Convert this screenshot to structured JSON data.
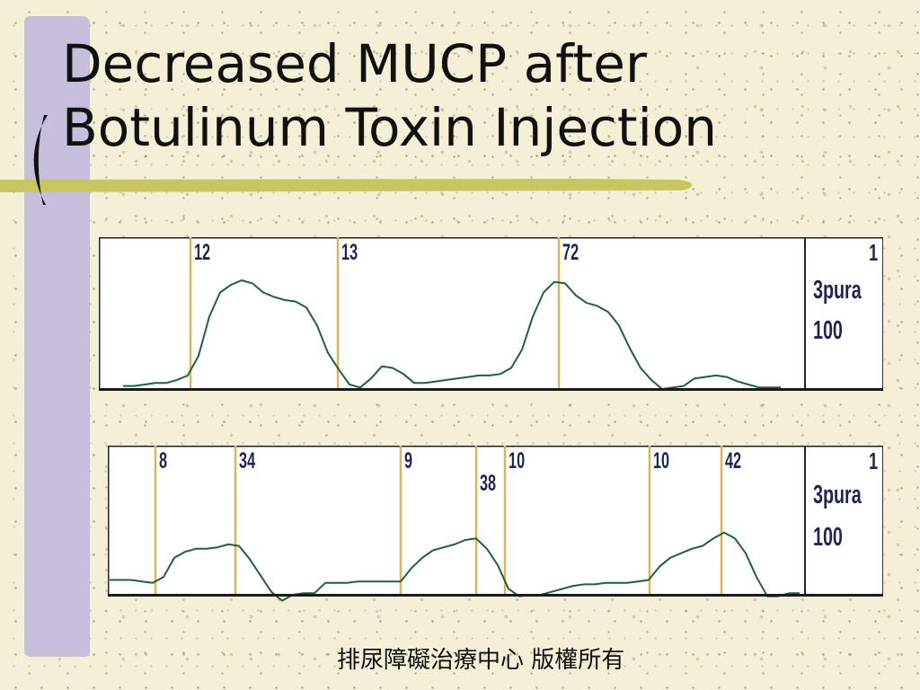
{
  "slide": {
    "title_lines": [
      "Decreased MUCP after",
      "Botulinum Toxin Injection"
    ],
    "footer": "排尿障礙治療中心 版權所有"
  },
  "colors": {
    "background": "#f3f0d7",
    "side_bar": "#c6bedc",
    "rule": "#c8c660",
    "trace": "#245f3d",
    "marker": "#d8b75a",
    "label": "#1e2553"
  },
  "chart_data": [
    {
      "type": "line",
      "channel_number": "1",
      "channel_label": "3pura",
      "scale_label": "100",
      "ylim": [
        0,
        100
      ],
      "series": [
        {
          "values": [
            2,
            2,
            3,
            4,
            4,
            6,
            9,
            22,
            48,
            64,
            69,
            72,
            70,
            64,
            61,
            59,
            58,
            54,
            42,
            24,
            13,
            3,
            1,
            7,
            15,
            14,
            10,
            4,
            4,
            5,
            6,
            7,
            8,
            9,
            9,
            10,
            14,
            26,
            48,
            64,
            71,
            70,
            62,
            57,
            55,
            51,
            42,
            27,
            14,
            6,
            0,
            1,
            2,
            7,
            8,
            9,
            8,
            5,
            3,
            1,
            1,
            1
          ]
        }
      ],
      "markers": [
        {
          "at": 6.25,
          "label": "12"
        },
        {
          "at": 19.92,
          "label": "13"
        },
        {
          "at": 40.42,
          "label": "72"
        }
      ]
    },
    {
      "type": "line",
      "channel_number": "1",
      "channel_label": "3pura",
      "scale_label": "100",
      "ylim": [
        0,
        100
      ],
      "series": [
        {
          "values": [
            10,
            10,
            10,
            9,
            8,
            12,
            25,
            29,
            31,
            31,
            32,
            34,
            33,
            24,
            13,
            2,
            -4,
            0,
            1,
            1,
            8,
            8,
            8,
            9,
            9,
            9,
            9,
            9,
            18,
            25,
            30,
            32,
            34,
            37,
            38,
            31,
            20,
            4,
            -1,
            0,
            0,
            2,
            4,
            6,
            7,
            7,
            8,
            8,
            8,
            9,
            10,
            19,
            25,
            28,
            31,
            33,
            38,
            42,
            38,
            28,
            12,
            -1,
            -1,
            1,
            1
          ]
        }
      ],
      "markers": [
        {
          "at": 4.25,
          "label": "8"
        },
        {
          "at": 11.67,
          "label": "34"
        },
        {
          "at": 27,
          "label": "9"
        },
        {
          "at": 34,
          "label": "38"
        },
        {
          "at": 36.67,
          "label": "10"
        },
        {
          "at": 50.08,
          "label": "10"
        },
        {
          "at": 56.75,
          "label": "42"
        }
      ]
    }
  ]
}
